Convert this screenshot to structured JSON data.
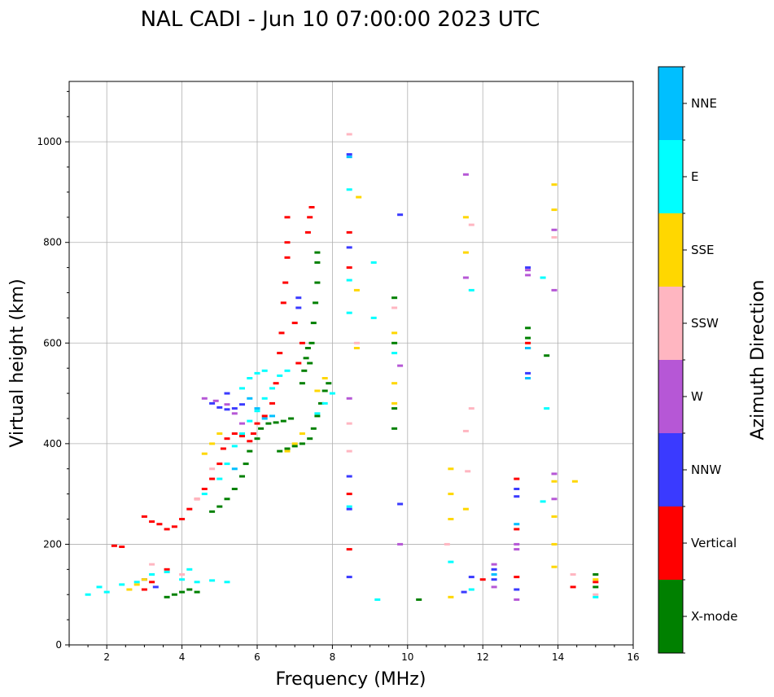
{
  "chart_data": {
    "type": "scatter",
    "title": "NAL CADI - Jun 10 07:00:00 2023 UTC",
    "xlabel": "Frequency (MHz)",
    "ylabel": "Virtual height (km)",
    "xlim": [
      1,
      16
    ],
    "ylim": [
      0,
      1120
    ],
    "xticks": [
      2,
      4,
      6,
      8,
      10,
      12,
      14,
      16
    ],
    "yticks": [
      0,
      200,
      400,
      600,
      800,
      1000
    ],
    "grid": true,
    "colorbar": {
      "label": "Azimuth Direction",
      "placement": "right",
      "categories": [
        {
          "name": "X-mode",
          "color": "#008000"
        },
        {
          "name": "Vertical",
          "color": "#ff0000"
        },
        {
          "name": "NNW",
          "color": "#3a3aff"
        },
        {
          "name": "W",
          "color": "#b657d6"
        },
        {
          "name": "SSW",
          "color": "#ffb6c1"
        },
        {
          "name": "SSE",
          "color": "#ffd700"
        },
        {
          "name": "E",
          "color": "#00ffff"
        },
        {
          "name": "NNE",
          "color": "#00bfff"
        }
      ]
    },
    "series": [
      {
        "name": "X-mode",
        "points": [
          [
            3.6,
            95
          ],
          [
            3.8,
            100
          ],
          [
            4.0,
            105
          ],
          [
            4.2,
            110
          ],
          [
            4.4,
            105
          ],
          [
            4.8,
            265
          ],
          [
            5.0,
            275
          ],
          [
            5.2,
            290
          ],
          [
            5.4,
            310
          ],
          [
            5.6,
            335
          ],
          [
            5.7,
            360
          ],
          [
            5.8,
            385
          ],
          [
            6.0,
            410
          ],
          [
            6.1,
            430
          ],
          [
            6.3,
            440
          ],
          [
            6.5,
            442
          ],
          [
            6.7,
            445
          ],
          [
            6.9,
            450
          ],
          [
            6.6,
            385
          ],
          [
            6.8,
            390
          ],
          [
            7.0,
            395
          ],
          [
            7.2,
            400
          ],
          [
            7.4,
            410
          ],
          [
            7.5,
            430
          ],
          [
            7.6,
            455
          ],
          [
            7.7,
            480
          ],
          [
            7.8,
            505
          ],
          [
            7.9,
            520
          ],
          [
            7.4,
            560
          ],
          [
            7.45,
            600
          ],
          [
            7.5,
            640
          ],
          [
            7.55,
            680
          ],
          [
            7.6,
            720
          ],
          [
            7.6,
            760
          ],
          [
            7.6,
            780
          ],
          [
            7.2,
            520
          ],
          [
            7.25,
            545
          ],
          [
            7.3,
            570
          ],
          [
            7.35,
            590
          ],
          [
            9.65,
            430
          ],
          [
            9.65,
            470
          ],
          [
            9.65,
            600
          ],
          [
            9.65,
            690
          ],
          [
            10.3,
            90
          ],
          [
            13.2,
            590
          ],
          [
            13.2,
            610
          ],
          [
            13.2,
            630
          ],
          [
            13.7,
            575
          ],
          [
            15.0,
            140
          ],
          [
            15.0,
            115
          ]
        ]
      },
      {
        "name": "Vertical",
        "points": [
          [
            3.0,
            255
          ],
          [
            3.2,
            245
          ],
          [
            3.4,
            240
          ],
          [
            3.6,
            230
          ],
          [
            3.8,
            235
          ],
          [
            4.0,
            250
          ],
          [
            4.2,
            270
          ],
          [
            4.4,
            290
          ],
          [
            4.6,
            310
          ],
          [
            4.8,
            330
          ],
          [
            5.0,
            360
          ],
          [
            5.1,
            390
          ],
          [
            5.2,
            410
          ],
          [
            5.4,
            420
          ],
          [
            5.6,
            415
          ],
          [
            5.8,
            405
          ],
          [
            5.9,
            420
          ],
          [
            6.0,
            440
          ],
          [
            6.2,
            455
          ],
          [
            6.4,
            480
          ],
          [
            6.5,
            520
          ],
          [
            6.6,
            580
          ],
          [
            6.65,
            620
          ],
          [
            6.7,
            680
          ],
          [
            6.75,
            720
          ],
          [
            6.8,
            770
          ],
          [
            6.8,
            800
          ],
          [
            6.8,
            850
          ],
          [
            7.0,
            640
          ],
          [
            7.1,
            560
          ],
          [
            7.2,
            600
          ],
          [
            7.35,
            820
          ],
          [
            7.4,
            850
          ],
          [
            7.45,
            870
          ],
          [
            2.2,
            197
          ],
          [
            2.4,
            195
          ],
          [
            3.0,
            110
          ],
          [
            3.2,
            125
          ],
          [
            3.6,
            150
          ],
          [
            8.45,
            190
          ],
          [
            8.45,
            300
          ],
          [
            8.45,
            820
          ],
          [
            8.45,
            750
          ],
          [
            12.9,
            330
          ],
          [
            12.9,
            230
          ],
          [
            12.9,
            135
          ],
          [
            13.2,
            600
          ],
          [
            14.4,
            115
          ],
          [
            15.0,
            125
          ],
          [
            12.0,
            130
          ]
        ]
      },
      {
        "name": "NNW",
        "points": [
          [
            4.8,
            480
          ],
          [
            5.0,
            472
          ],
          [
            5.2,
            468
          ],
          [
            5.4,
            470
          ],
          [
            5.6,
            478
          ],
          [
            5.2,
            500
          ],
          [
            3.0,
            130
          ],
          [
            3.3,
            115
          ],
          [
            8.45,
            975
          ],
          [
            8.45,
            790
          ],
          [
            8.45,
            335
          ],
          [
            8.45,
            270
          ],
          [
            9.8,
            280
          ],
          [
            9.8,
            855
          ],
          [
            11.5,
            105
          ],
          [
            11.7,
            135
          ],
          [
            12.3,
            150
          ],
          [
            12.3,
            130
          ],
          [
            12.9,
            295
          ],
          [
            12.9,
            310
          ],
          [
            12.9,
            110
          ],
          [
            13.2,
            540
          ],
          [
            13.2,
            750
          ],
          [
            7.1,
            690
          ],
          [
            7.1,
            670
          ],
          [
            8.45,
            135
          ]
        ]
      },
      {
        "name": "W",
        "points": [
          [
            4.6,
            490
          ],
          [
            4.9,
            485
          ],
          [
            5.2,
            478
          ],
          [
            5.4,
            460
          ],
          [
            5.6,
            440
          ],
          [
            8.45,
            490
          ],
          [
            9.8,
            555
          ],
          [
            9.8,
            200
          ],
          [
            12.3,
            160
          ],
          [
            12.3,
            115
          ],
          [
            12.9,
            190
          ],
          [
            12.9,
            200
          ],
          [
            12.9,
            90
          ],
          [
            13.2,
            745
          ],
          [
            13.2,
            735
          ],
          [
            13.9,
            825
          ],
          [
            13.9,
            340
          ],
          [
            13.9,
            290
          ],
          [
            13.9,
            705
          ],
          [
            11.55,
            730
          ],
          [
            11.55,
            935
          ]
        ]
      },
      {
        "name": "SSW",
        "points": [
          [
            3.2,
            160
          ],
          [
            3.6,
            145
          ],
          [
            4.0,
            140
          ],
          [
            4.4,
            290
          ],
          [
            4.8,
            350
          ],
          [
            8.45,
            1015
          ],
          [
            8.45,
            440
          ],
          [
            8.45,
            385
          ],
          [
            8.65,
            600
          ],
          [
            9.65,
            670
          ],
          [
            11.7,
            470
          ],
          [
            11.7,
            835
          ],
          [
            11.6,
            345
          ],
          [
            11.55,
            425
          ],
          [
            11.05,
            200
          ],
          [
            13.9,
            810
          ],
          [
            14.4,
            140
          ],
          [
            15.0,
            100
          ]
        ]
      },
      {
        "name": "SSE",
        "points": [
          [
            2.6,
            110
          ],
          [
            2.8,
            120
          ],
          [
            3.0,
            130
          ],
          [
            4.6,
            380
          ],
          [
            4.8,
            400
          ],
          [
            5.0,
            420
          ],
          [
            6.8,
            385
          ],
          [
            7.0,
            400
          ],
          [
            7.2,
            420
          ],
          [
            7.6,
            505
          ],
          [
            7.8,
            530
          ],
          [
            8.7,
            890
          ],
          [
            8.65,
            705
          ],
          [
            8.65,
            590
          ],
          [
            9.65,
            620
          ],
          [
            9.65,
            520
          ],
          [
            9.65,
            480
          ],
          [
            11.15,
            250
          ],
          [
            11.15,
            300
          ],
          [
            11.15,
            350
          ],
          [
            11.15,
            95
          ],
          [
            11.55,
            270
          ],
          [
            11.55,
            780
          ],
          [
            11.55,
            850
          ],
          [
            13.9,
            915
          ],
          [
            13.9,
            865
          ],
          [
            13.9,
            325
          ],
          [
            13.9,
            255
          ],
          [
            13.9,
            200
          ],
          [
            13.9,
            155
          ],
          [
            14.45,
            325
          ],
          [
            15.0,
            130
          ]
        ]
      },
      {
        "name": "E",
        "points": [
          [
            1.5,
            100
          ],
          [
            1.8,
            115
          ],
          [
            2.0,
            105
          ],
          [
            2.4,
            120
          ],
          [
            2.8,
            125
          ],
          [
            3.2,
            140
          ],
          [
            3.6,
            145
          ],
          [
            4.0,
            130
          ],
          [
            4.4,
            125
          ],
          [
            4.8,
            128
          ],
          [
            5.2,
            125
          ],
          [
            4.2,
            150
          ],
          [
            4.6,
            300
          ],
          [
            5.0,
            330
          ],
          [
            5.2,
            360
          ],
          [
            5.4,
            395
          ],
          [
            5.6,
            420
          ],
          [
            5.8,
            445
          ],
          [
            6.0,
            465
          ],
          [
            6.2,
            490
          ],
          [
            6.4,
            510
          ],
          [
            6.6,
            535
          ],
          [
            6.8,
            545
          ],
          [
            5.6,
            510
          ],
          [
            5.8,
            530
          ],
          [
            6.0,
            540
          ],
          [
            6.2,
            545
          ],
          [
            7.6,
            460
          ],
          [
            7.8,
            480
          ],
          [
            8.0,
            500
          ],
          [
            8.45,
            905
          ],
          [
            8.45,
            725
          ],
          [
            8.45,
            660
          ],
          [
            8.45,
            275
          ],
          [
            9.1,
            760
          ],
          [
            9.1,
            650
          ],
          [
            9.2,
            90
          ],
          [
            9.65,
            580
          ],
          [
            11.15,
            165
          ],
          [
            11.7,
            110
          ],
          [
            11.7,
            705
          ],
          [
            13.6,
            730
          ],
          [
            13.7,
            470
          ],
          [
            13.6,
            285
          ],
          [
            15.0,
            95
          ]
        ]
      },
      {
        "name": "NNE",
        "points": [
          [
            5.8,
            490
          ],
          [
            6.0,
            470
          ],
          [
            6.2,
            450
          ],
          [
            6.4,
            455
          ],
          [
            5.4,
            350
          ],
          [
            8.45,
            970
          ],
          [
            12.9,
            240
          ],
          [
            12.3,
            140
          ],
          [
            13.2,
            530
          ],
          [
            13.2,
            590
          ]
        ]
      }
    ]
  }
}
